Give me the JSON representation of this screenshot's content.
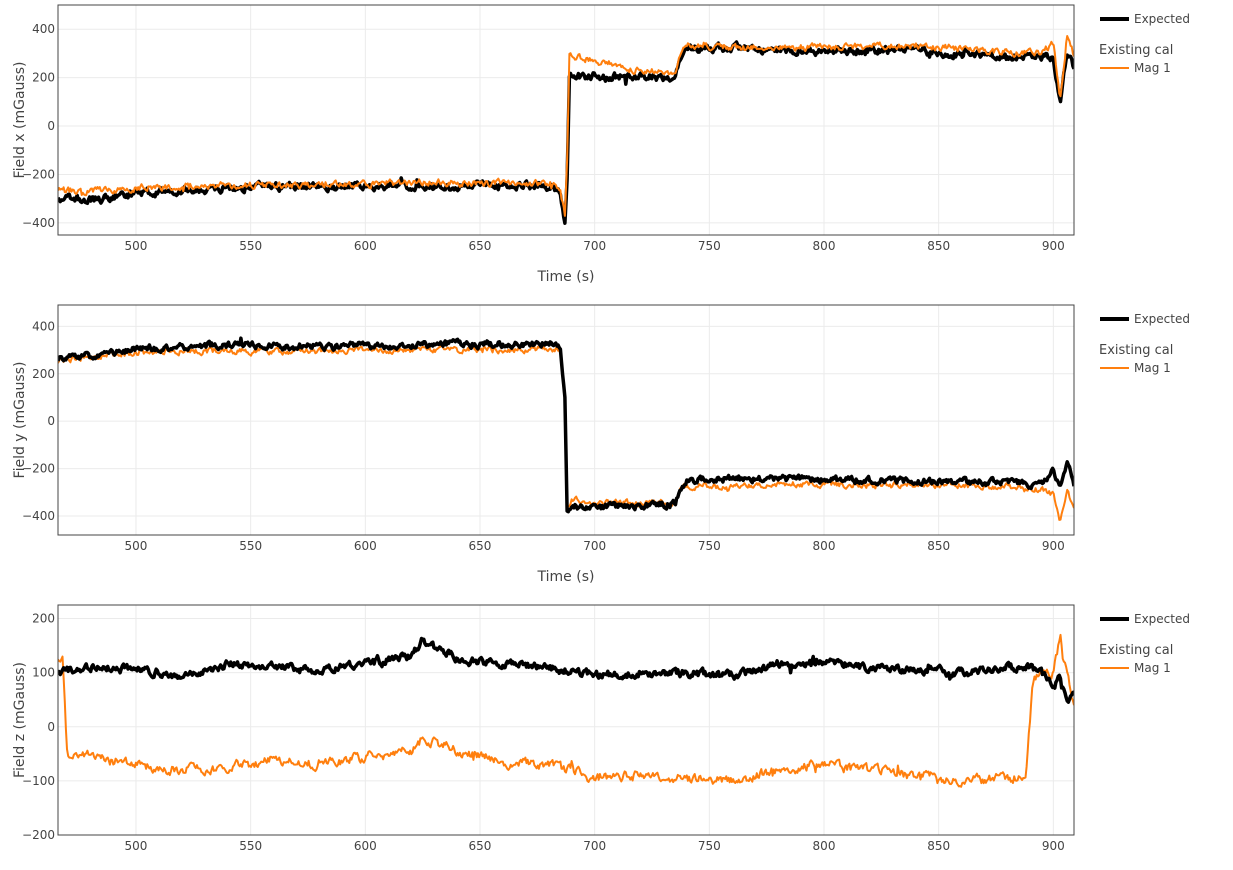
{
  "chart_data": [
    {
      "type": "line",
      "title": "",
      "xlabel": "Time (s)",
      "ylabel": "Field x (mGauss)",
      "xlim": [
        466,
        909
      ],
      "ylim": [
        -450,
        500
      ],
      "xticks": [
        500,
        550,
        600,
        650,
        700,
        750,
        800,
        850,
        900
      ],
      "yticks": [
        -400,
        -200,
        0,
        200,
        400
      ],
      "ytick_labels": [
        "−400",
        "−200",
        "0",
        "200",
        "400"
      ],
      "legend": {
        "position": "right",
        "top_entry": "Expected",
        "group_title": "Existing cal",
        "group_entry": "Mag 1"
      },
      "series": [
        {
          "name": "Expected",
          "color": "#000000",
          "x": [
            466,
            480,
            500,
            520,
            540,
            560,
            580,
            600,
            620,
            640,
            660,
            680,
            685,
            687,
            688,
            689,
            690,
            700,
            720,
            735,
            738,
            740,
            760,
            780,
            800,
            820,
            840,
            860,
            880,
            895,
            900,
            903,
            906,
            909
          ],
          "y": [
            -300,
            -305,
            -280,
            -265,
            -255,
            -250,
            -250,
            -250,
            -245,
            -245,
            -240,
            -245,
            -275,
            -390,
            -200,
            220,
            205,
            205,
            200,
            205,
            300,
            320,
            320,
            315,
            310,
            315,
            310,
            295,
            290,
            280,
            290,
            100,
            300,
            240
          ]
        },
        {
          "name": "Mag 1",
          "color": "#ff7f0e",
          "x": [
            466,
            480,
            500,
            520,
            540,
            560,
            580,
            600,
            620,
            640,
            660,
            680,
            685,
            687,
            688,
            689,
            690,
            700,
            720,
            735,
            738,
            740,
            760,
            780,
            800,
            820,
            840,
            860,
            880,
            895,
            900,
            903,
            906,
            909
          ],
          "y": [
            -270,
            -265,
            -255,
            -250,
            -245,
            -245,
            -245,
            -240,
            -235,
            -235,
            -235,
            -235,
            -260,
            -370,
            -150,
            320,
            290,
            270,
            230,
            215,
            320,
            330,
            325,
            325,
            325,
            330,
            335,
            320,
            305,
            300,
            350,
            110,
            380,
            290
          ]
        }
      ]
    },
    {
      "type": "line",
      "title": "",
      "xlabel": "Time (s)",
      "ylabel": "Field y (mGauss)",
      "xlim": [
        466,
        909
      ],
      "ylim": [
        -480,
        490
      ],
      "xticks": [
        500,
        550,
        600,
        650,
        700,
        750,
        800,
        850,
        900
      ],
      "yticks": [
        -400,
        -200,
        0,
        200,
        400
      ],
      "ytick_labels": [
        "−400",
        "−200",
        "0",
        "200",
        "400"
      ],
      "legend": {
        "position": "right",
        "top_entry": "Expected",
        "group_title": "Existing cal",
        "group_entry": "Mag 1"
      },
      "series": [
        {
          "name": "Expected",
          "color": "#000000",
          "x": [
            466,
            480,
            490,
            500,
            520,
            540,
            560,
            580,
            600,
            620,
            640,
            660,
            680,
            685,
            687,
            688,
            690,
            700,
            720,
            735,
            738,
            740,
            760,
            780,
            800,
            820,
            840,
            860,
            880,
            895,
            900,
            903,
            906,
            909
          ],
          "y": [
            265,
            275,
            290,
            305,
            315,
            320,
            315,
            315,
            320,
            320,
            325,
            325,
            330,
            320,
            100,
            -390,
            -360,
            -365,
            -355,
            -345,
            -270,
            -250,
            -240,
            -245,
            -245,
            -250,
            -250,
            -255,
            -260,
            -270,
            -200,
            -280,
            -160,
            -270
          ],
          "width": 3.5
        },
        {
          "name": "Mag 1",
          "color": "#ff7f0e",
          "x": [
            466,
            480,
            490,
            500,
            520,
            540,
            560,
            580,
            600,
            620,
            640,
            660,
            680,
            685,
            687,
            688,
            690,
            700,
            720,
            735,
            738,
            740,
            760,
            780,
            800,
            820,
            840,
            860,
            880,
            895,
            900,
            903,
            906,
            909
          ],
          "y": [
            255,
            270,
            280,
            290,
            295,
            295,
            295,
            295,
            300,
            300,
            300,
            300,
            305,
            300,
            90,
            -360,
            -330,
            -345,
            -345,
            -340,
            -260,
            -270,
            -280,
            -265,
            -265,
            -270,
            -270,
            -270,
            -275,
            -290,
            -310,
            -400,
            -300,
            -360
          ]
        }
      ]
    },
    {
      "type": "line",
      "title": "",
      "xlabel": "",
      "ylabel": "Field z (mGauss)",
      "xlim": [
        466,
        909
      ],
      "ylim": [
        -200,
        225
      ],
      "xticks": [
        500,
        550,
        600,
        650,
        700,
        750,
        800,
        850,
        900
      ],
      "yticks": [
        -200,
        -100,
        0,
        100,
        200
      ],
      "ytick_labels": [
        "−200",
        "−100",
        "0",
        "100",
        "200"
      ],
      "legend": {
        "position": "right",
        "top_entry": "Expected",
        "group_title": "Existing cal",
        "group_entry": "Mag 1"
      },
      "series": [
        {
          "name": "Expected",
          "color": "#000000",
          "x": [
            466,
            480,
            500,
            520,
            540,
            560,
            580,
            600,
            620,
            625,
            640,
            660,
            680,
            700,
            720,
            740,
            760,
            780,
            800,
            820,
            840,
            860,
            880,
            890,
            895,
            900,
            903,
            906,
            909
          ],
          "y": [
            100,
            110,
            105,
            95,
            115,
            110,
            105,
            115,
            130,
            160,
            125,
            115,
            110,
            95,
            100,
            100,
            95,
            115,
            120,
            110,
            105,
            100,
            110,
            110,
            100,
            75,
            90,
            40,
            70
          ],
          "width": 3.5
        },
        {
          "name": "Mag 1",
          "color": "#ff7f0e",
          "x": [
            466,
            468,
            470,
            480,
            500,
            520,
            540,
            560,
            580,
            600,
            620,
            625,
            640,
            660,
            680,
            700,
            720,
            740,
            760,
            780,
            800,
            820,
            840,
            860,
            880,
            888,
            891,
            895,
            900,
            903,
            906,
            909
          ],
          "y": [
            125,
            120,
            -50,
            -55,
            -70,
            -80,
            -75,
            -60,
            -70,
            -55,
            -45,
            -20,
            -45,
            -65,
            -70,
            -95,
            -90,
            -95,
            -100,
            -80,
            -70,
            -80,
            -90,
            -100,
            -95,
            -90,
            80,
            110,
            100,
            170,
            90,
            45
          ]
        }
      ]
    }
  ]
}
